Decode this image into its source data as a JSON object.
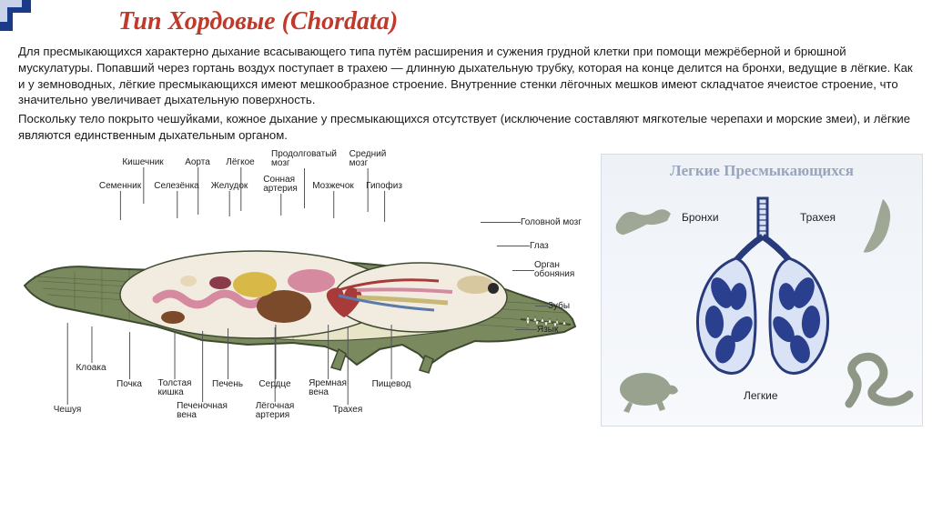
{
  "title": "Тип Хордовые (Chordata)",
  "paragraphs": {
    "p1": "Для пресмыкающихся характерно дыхание всасывающего типа путём расширения и сужения грудной клетки при помощи межрёберной и брюшной мускулатуры. Попавший через гортань воздух поступает в трахею — длинную дыхательную трубку, которая на конце делится на бронхи, ведущие в лёгкие. Как и у земноводных, лёгкие пресмыкающихся имеют мешкообразное строение. Внутренние стенки лёгочных мешков имеют складчатое ячеистое строение, что значительно увеличивает дыхательную поверхность.",
    "p2": "Поскольку тело покрыто чешуйками, кожное дыхание у пресмыкающихся отсутствует (исключение составляют мягкотелые черепахи и морские змеи), и лёгкие являются единственным дыхательным органом."
  },
  "croc_labels": {
    "top": {
      "kishechnik": "Кишечник",
      "aorta": "Аорта",
      "lyogkoe": "Лёгкое",
      "prodolg_mozg": "Продолговатый\nмозг",
      "sredniy_mozg": "Средний\nмозг",
      "semennik": "Семенник",
      "selezyonka": "Селезёнка",
      "zheludok": "Желудок",
      "sonnaya_art": "Сонная\nартерия",
      "mozzhechok": "Мозжечок",
      "gipofiz": "Гипофиз"
    },
    "right": {
      "golovnoy_mozg": "Головной мозг",
      "glaz": "Глаз",
      "organ_obon": "Орган\nобоняния",
      "zuby": "Зубы",
      "yazyk": "Язык"
    },
    "bottom": {
      "kloaka": "Клоака",
      "pochka": "Почка",
      "tolstaya_kishka": "Толстая\nкишка",
      "pechen": "Печень",
      "serdtse": "Сердце",
      "yaremnaya_vena": "Яремная\nвена",
      "pishchevod": "Пищевод",
      "cheshuya": "Чешуя",
      "pechen_vena": "Печеночная\nвена",
      "lyog_art": "Лёгочная\nартерия",
      "trakheya": "Трахея"
    }
  },
  "lungs": {
    "panel_title": "Легкие Пресмыкающихся",
    "bronhi": "Бронхи",
    "trakheya": "Трахея",
    "lyogkie": "Легкие",
    "colors": {
      "outline": "#283a7a",
      "lung_fill": "#d9e3f5",
      "stroke_inner": "#3a4e9a",
      "fill_petals": "#2b3f8f"
    }
  },
  "style": {
    "title_color": "#c0392b",
    "text_color": "#1a1a1a",
    "croc_fill": "#7a8a5e",
    "croc_belly": "#e8e4c8",
    "croc_outline": "#3e4a2f",
    "organ_red": "#a83a3a",
    "organ_yellow": "#d8b846",
    "organ_brown": "#7a4a2a",
    "organ_pink": "#d68aa0",
    "organ_blue": "#5a7aa8"
  }
}
